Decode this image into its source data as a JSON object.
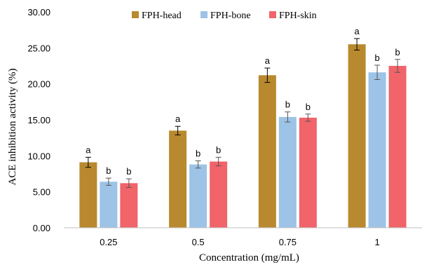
{
  "chart_data": {
    "type": "bar",
    "title": "",
    "xlabel": "Concentration (mg/mL)",
    "ylabel": "ACE inhibition activity (%)",
    "categories": [
      "0.25",
      "0.5",
      "0.75",
      "1"
    ],
    "ylim": [
      0,
      30
    ],
    "y_ticks": [
      "0.00",
      "5.00",
      "10.00",
      "15.00",
      "20.00",
      "25.00",
      "30.00"
    ],
    "grid": false,
    "legend_position": "top",
    "series": [
      {
        "name": "FPH-head",
        "color": "#B8892E",
        "values": [
          9.1,
          13.5,
          21.2,
          25.5
        ],
        "errors": [
          0.7,
          0.6,
          1.0,
          0.8
        ],
        "significance": [
          "a",
          "a",
          "a",
          "a"
        ]
      },
      {
        "name": "FPH-bone",
        "color": "#9DC3E6",
        "values": [
          6.4,
          8.8,
          15.4,
          21.6
        ],
        "errors": [
          0.5,
          0.5,
          0.7,
          1.0
        ],
        "significance": [
          "b",
          "b",
          "b",
          "b"
        ]
      },
      {
        "name": "FPH-skin",
        "color": "#F0646A",
        "values": [
          6.2,
          9.2,
          15.3,
          22.5
        ],
        "errors": [
          0.6,
          0.6,
          0.5,
          0.9
        ],
        "significance": [
          "b",
          "b",
          "b",
          "b"
        ]
      }
    ]
  }
}
